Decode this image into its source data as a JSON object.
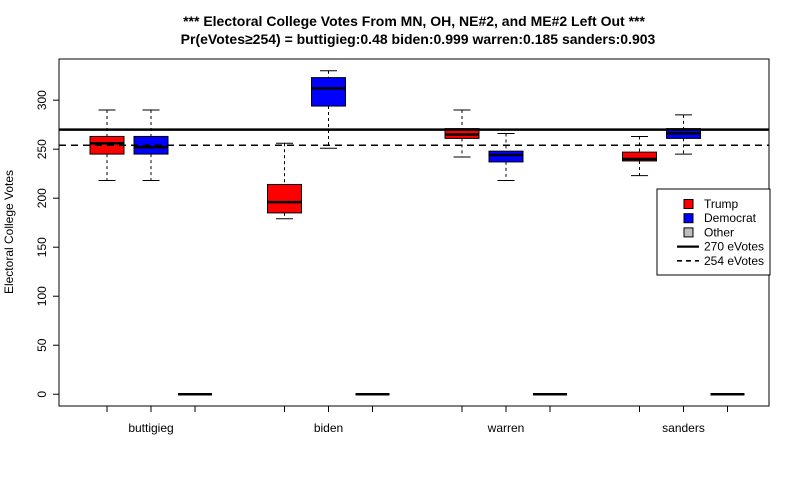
{
  "chart_data": {
    "type": "boxplot",
    "title": "*** Electoral College Votes From MN, OH, NE#2, and ME#2 Left Out ***",
    "subtitle": "Pr(eVotes≥254) = buttigieg:0.48  biden:0.999  warren:0.185  sanders:0.903",
    "ylabel": "Electoral College Votes",
    "xlabel": "",
    "ylim": [
      -12,
      342
    ],
    "yticks": [
      0,
      50,
      100,
      150,
      200,
      250,
      300
    ],
    "categories": [
      "buttigieg",
      "biden",
      "warren",
      "sanders"
    ],
    "series": [
      {
        "name": "Trump",
        "color": "#ff0000",
        "boxes": [
          {
            "whisker_low": 218,
            "q1": 245,
            "median": 256,
            "q3": 263,
            "whisker_high": 290
          },
          {
            "whisker_low": 179,
            "q1": 185,
            "median": 196,
            "q3": 214,
            "whisker_high": 256
          },
          {
            "whisker_low": 242,
            "q1": 261,
            "median": 265,
            "q3": 271,
            "whisker_high": 290
          },
          {
            "whisker_low": 223,
            "q1": 238,
            "median": 240,
            "q3": 247,
            "whisker_high": 263
          }
        ]
      },
      {
        "name": "Democrat",
        "color": "#0000ff",
        "boxes": [
          {
            "whisker_low": 218,
            "q1": 245,
            "median": 252,
            "q3": 263,
            "whisker_high": 290
          },
          {
            "whisker_low": 251,
            "q1": 294,
            "median": 312,
            "q3": 323,
            "whisker_high": 330
          },
          {
            "whisker_low": 218,
            "q1": 237,
            "median": 244,
            "q3": 248,
            "whisker_high": 266
          },
          {
            "whisker_low": 245,
            "q1": 261,
            "median": 266,
            "q3": 271,
            "whisker_high": 285
          }
        ]
      },
      {
        "name": "Other",
        "color": "#bebebe",
        "boxes": [
          {
            "whisker_low": 0,
            "q1": 0,
            "median": 0,
            "q3": 0,
            "whisker_high": 0
          },
          {
            "whisker_low": 0,
            "q1": 0,
            "median": 0,
            "q3": 0,
            "whisker_high": 0
          },
          {
            "whisker_low": 0,
            "q1": 0,
            "median": 0,
            "q3": 0,
            "whisker_high": 0
          },
          {
            "whisker_low": 0,
            "q1": 0,
            "median": 0,
            "q3": 0,
            "whisker_high": 0
          }
        ]
      }
    ],
    "reference_lines": [
      {
        "name": "270 eVotes",
        "value": 270,
        "style": "solid"
      },
      {
        "name": "254 eVotes",
        "value": 254,
        "style": "dashed"
      }
    ],
    "legend": {
      "position": "right",
      "entries": [
        {
          "label": "Trump",
          "kind": "box",
          "color": "#ff0000"
        },
        {
          "label": "Democrat",
          "kind": "box",
          "color": "#0000ff"
        },
        {
          "label": "Other",
          "kind": "box",
          "color": "#bebebe"
        },
        {
          "label": "270 eVotes",
          "kind": "solid"
        },
        {
          "label": "254 eVotes",
          "kind": "dashed"
        }
      ]
    },
    "grid": false
  }
}
